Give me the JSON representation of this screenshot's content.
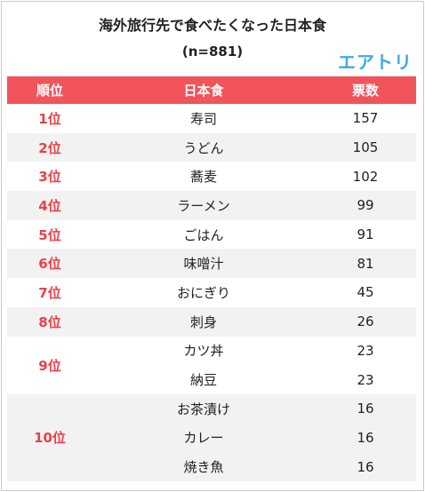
{
  "title": "海外旅行先で食べたくなった日本食",
  "subtitle": "(n=881)",
  "brand": "エアトリ",
  "chart_data": {
    "type": "table",
    "columns": [
      "順位",
      "日本食",
      "票数"
    ],
    "rows": [
      {
        "rank": "1位",
        "food": "寿司",
        "votes": 157
      },
      {
        "rank": "2位",
        "food": "うどん",
        "votes": 105
      },
      {
        "rank": "3位",
        "food": "蕎麦",
        "votes": 102
      },
      {
        "rank": "4位",
        "food": "ラーメン",
        "votes": 99
      },
      {
        "rank": "5位",
        "food": "ごはん",
        "votes": 91
      },
      {
        "rank": "6位",
        "food": "味噌汁",
        "votes": 81
      },
      {
        "rank": "7位",
        "food": "おにぎり",
        "votes": 45
      },
      {
        "rank": "8位",
        "food": "刺身",
        "votes": 26
      },
      {
        "rank": "9位",
        "food": "カツ丼",
        "votes": 23
      },
      {
        "rank": "9位",
        "food": "納豆",
        "votes": 23
      },
      {
        "rank": "10位",
        "food": "お茶漬け",
        "votes": 16
      },
      {
        "rank": "10位",
        "food": "カレー",
        "votes": 16
      },
      {
        "rank": "10位",
        "food": "焼き魚",
        "votes": 16
      }
    ]
  }
}
